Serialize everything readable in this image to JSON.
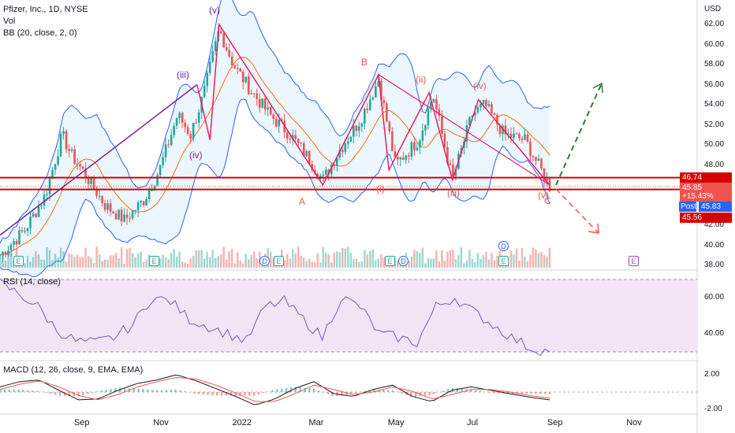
{
  "header": {
    "title": "Pfizer, Inc., 1D, NYSE",
    "vol": "Vol",
    "bb": "BB (20, close, 2, 0)",
    "rsi": "RSI (14, close)",
    "macd": "MACD (12, 26, close, 9, EMA, EMA)"
  },
  "axis": {
    "currency": "USD",
    "price_ticks": [
      "62.00",
      "60.00",
      "58.00",
      "56.00",
      "54.00",
      "52.00",
      "50.00",
      "48.00",
      "44.00",
      "42.00",
      "40.00",
      "38.00"
    ],
    "rsi_ticks": [
      "60.00",
      "40.00"
    ],
    "macd_ticks": [
      "2.00",
      "-2.00"
    ],
    "x_ticks": [
      "Sep",
      "Nov",
      "2022",
      "Mar",
      "May",
      "Jul",
      "Sep",
      "Nov"
    ]
  },
  "price_tags": {
    "upper": "46.74",
    "last": "45.85",
    "change": "+15.43%",
    "post_label": "Post",
    "post": "45.83",
    "lower": "45.56"
  },
  "waves": [
    "(iii)",
    "(iv)",
    "(v)",
    "A",
    "B",
    "(i)",
    "(ii)",
    "(iii)",
    "(iv)",
    "(v)",
    "C"
  ],
  "events": {
    "e": "E",
    "d": "D"
  },
  "colors": {
    "bg": "#ffffff",
    "up": "#26a69a",
    "down": "#ef5350",
    "bb_band": "#2962ff",
    "bb_basis": "#ff6d00",
    "bb_fill": "#e3f2fd",
    "rsi": "#7e57c2",
    "rsi_bg": "#f3e5f5",
    "macd": "#131722",
    "signal": "#ff5252",
    "wave_red": "#e91e63",
    "wave_purple": "#7b1fa2",
    "hline": "#d50000",
    "arrow": "#2e7d32",
    "post": "#2962ff"
  },
  "chart_data": [
    {
      "type": "candlestick",
      "title": "Pfizer, Inc., 1D, NYSE",
      "ylabel": "USD",
      "ylim": [
        37.5,
        63.5
      ],
      "x": [
        "2021-07",
        "2021-08",
        "2021-09",
        "2021-10",
        "2021-11",
        "2021-12",
        "2022-01",
        "2022-02",
        "2022-03",
        "2022-04",
        "2022-05",
        "2022-06",
        "2022-07",
        "2022-08"
      ],
      "close_path": [
        [
          "2021-07-01",
          39.0
        ],
        [
          "2021-07-20",
          41.5
        ],
        [
          "2021-08-05",
          45.0
        ],
        [
          "2021-08-18",
          51.0
        ],
        [
          "2021-08-25",
          49.0
        ],
        [
          "2021-09-05",
          47.0
        ],
        [
          "2021-09-20",
          44.0
        ],
        [
          "2021-10-05",
          42.5
        ],
        [
          "2021-10-20",
          44.5
        ],
        [
          "2021-11-01",
          47.5
        ],
        [
          "2021-11-15",
          53.0
        ],
        [
          "2021-11-25",
          51.0
        ],
        [
          "2021-12-05",
          55.0
        ],
        [
          "2021-12-17",
          61.5
        ],
        [
          "2021-12-28",
          58.0
        ],
        [
          "2022-01-10",
          55.5
        ],
        [
          "2022-01-25",
          53.0
        ],
        [
          "2022-02-10",
          51.0
        ],
        [
          "2022-02-25",
          48.5
        ],
        [
          "2022-03-07",
          46.5
        ],
        [
          "2022-03-20",
          49.5
        ],
        [
          "2022-04-05",
          52.5
        ],
        [
          "2022-04-19",
          56.5
        ],
        [
          "2022-05-02",
          48.0
        ],
        [
          "2022-05-20",
          50.5
        ],
        [
          "2022-05-31",
          55.0
        ],
        [
          "2022-06-15",
          46.5
        ],
        [
          "2022-06-30",
          53.0
        ],
        [
          "2022-07-10",
          54.0
        ],
        [
          "2022-07-25",
          51.0
        ],
        [
          "2022-08-10",
          50.5
        ],
        [
          "2022-08-29",
          45.85
        ]
      ],
      "horizontal_levels": [
        46.74,
        45.56
      ],
      "last_price": 45.85,
      "change_pct": 15.43,
      "post_market": 45.83,
      "elliott_waves": [
        {
          "label": "(iii)",
          "price": 56.0
        },
        {
          "label": "(iv)",
          "price": 50.5
        },
        {
          "label": "(v)",
          "price": 62.0
        },
        {
          "label": "A",
          "price": 46.0
        },
        {
          "label": "B",
          "price": 57.0
        },
        {
          "label": "(i)",
          "price": 47.5
        },
        {
          "label": "(ii)",
          "price": 55.2
        },
        {
          "label": "(iii)",
          "price": 46.5
        },
        {
          "label": "(iv)",
          "price": 54.5
        },
        {
          "label": "(v)",
          "price": 46.0
        },
        {
          "label": "C",
          "price": 45.9
        }
      ]
    },
    {
      "type": "line",
      "title": "RSI (14, close)",
      "ylim": [
        28,
        72
      ],
      "levels": [
        70,
        30
      ],
      "series": [
        {
          "values": [
            68,
            62,
            55,
            42,
            36,
            35,
            38,
            45,
            60,
            58,
            48,
            44,
            40,
            36,
            55,
            58,
            48,
            38,
            60,
            55,
            40,
            38,
            35,
            55,
            60,
            52,
            45,
            38,
            32,
            30
          ]
        }
      ]
    },
    {
      "type": "line",
      "title": "MACD (12, 26, close, 9, EMA, EMA)",
      "ylim": [
        -2.5,
        3.0
      ],
      "series": [
        {
          "values": [
            0.6,
            1.2,
            1.4,
            0.2,
            -0.9,
            -0.8,
            0.2,
            1.0,
            1.4,
            2.0,
            1.3,
            0.4,
            -0.5,
            -1.5,
            -0.8,
            0.4,
            1.2,
            -0.2,
            -0.5,
            0.3,
            0.8,
            -0.5,
            -1.1,
            0.2,
            0.6,
            0.2,
            -0.2,
            -0.6,
            -0.9
          ]
        },
        {
          "values": [
            0.3,
            0.9,
            1.3,
            0.6,
            -0.4,
            -0.9,
            -0.3,
            0.6,
            1.2,
            1.7,
            1.5,
            0.8,
            -0.1,
            -1.1,
            -1.1,
            -0.2,
            0.8,
            0.3,
            -0.3,
            0.0,
            0.6,
            0.1,
            -0.8,
            -0.3,
            0.3,
            0.3,
            0.0,
            -0.4,
            -0.7
          ]
        }
      ]
    }
  ]
}
